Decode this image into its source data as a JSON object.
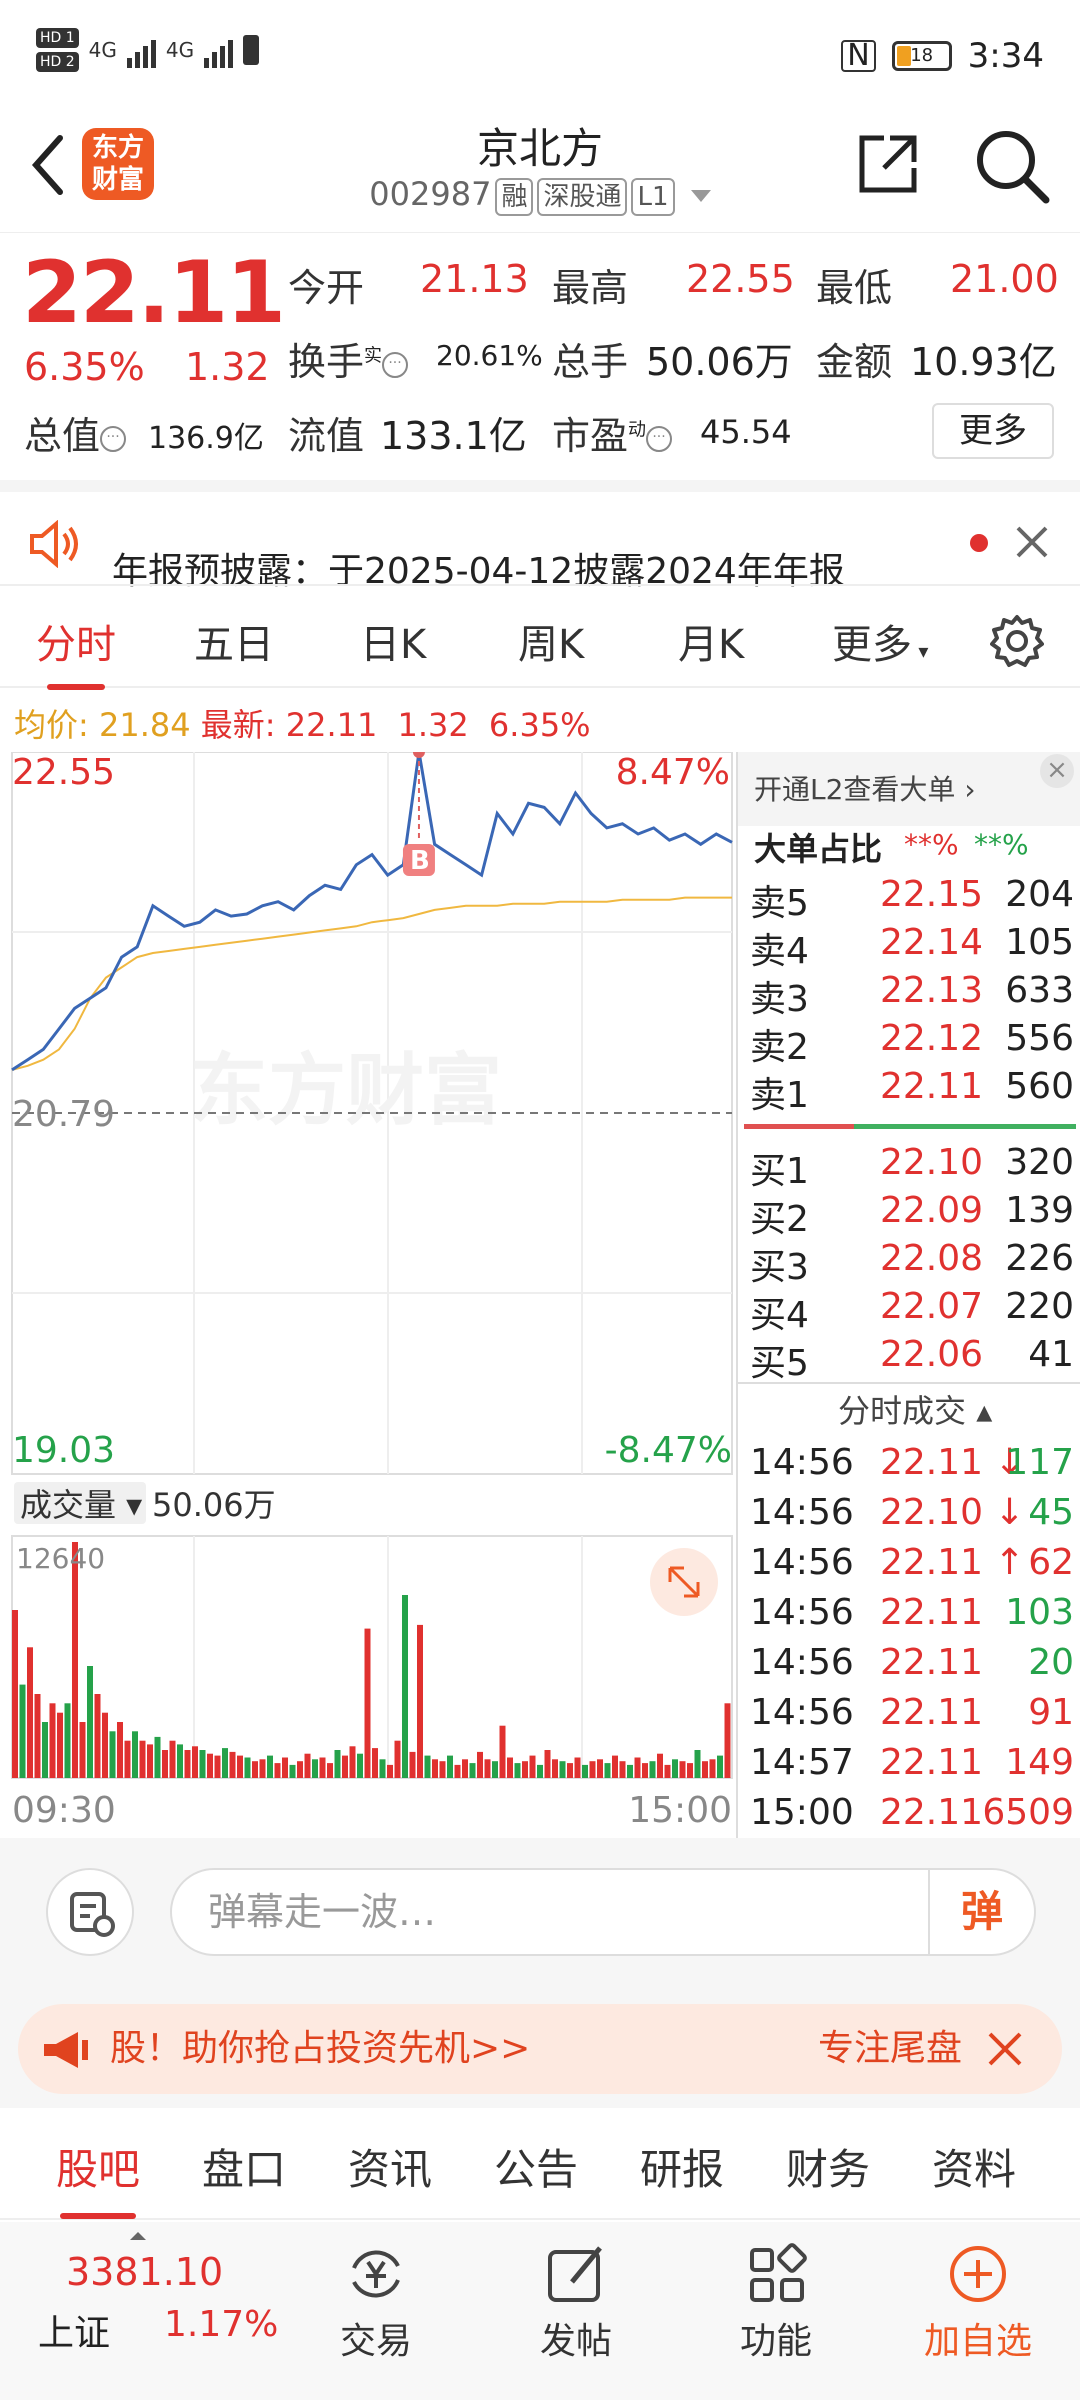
{
  "status_bar": {
    "sim1": "HD 1",
    "sim2": "HD 2",
    "net1": "4G",
    "net2": "4G",
    "battery": "18",
    "time": "3:34"
  },
  "header": {
    "logo": "东方\n财富",
    "title": "京北方",
    "code": "002987",
    "tags": [
      "融",
      "深股通",
      "L1"
    ]
  },
  "quote": {
    "price": "22.11",
    "change_pct": "6.35%",
    "change": "1.32",
    "open_label": "今开",
    "open": "21.13",
    "high_label": "最高",
    "high": "22.55",
    "low_label": "最低",
    "low": "21.00",
    "turnover_label": "换手",
    "turnover_sup": "实",
    "turnover": "20.61%",
    "volume_label": "总手",
    "volume": "50.06万",
    "amount_label": "金额",
    "amount": "10.93亿",
    "mktcap_label": "总值",
    "mktcap": "136.9亿",
    "float_label": "流值",
    "float": "133.1亿",
    "pe_label": "市盈",
    "pe_sup": "动",
    "pe": "45.54",
    "more": "更多"
  },
  "notice": {
    "text": "年报预披露：于2025-04-12披露2024年年报"
  },
  "tabs": [
    "分时",
    "五日",
    "日K",
    "周K",
    "月K",
    "更多"
  ],
  "avg_line": {
    "avg_label": "均价:",
    "avg": "21.84",
    "latest_label": "最新:",
    "latest": "22.11",
    "change": "1.32",
    "pct": "6.35%"
  },
  "chart_data": {
    "type": "line",
    "y_top": "22.55",
    "y_mid": "20.79",
    "y_bottom": "19.03",
    "pct_top": "8.47%",
    "pct_bottom": "-8.47%",
    "watermark": "东方财富",
    "marker": "B",
    "volume_label": "成交量",
    "volume_total": "50.06万",
    "volume_max": "12640",
    "x_start": "09:30",
    "x_end": "15:00",
    "ylim": [
      19.03,
      22.55
    ],
    "price": [
      21.0,
      21.05,
      21.1,
      21.2,
      21.3,
      21.35,
      21.4,
      21.55,
      21.6,
      21.8,
      21.75,
      21.7,
      21.72,
      21.78,
      21.75,
      21.76,
      21.8,
      21.82,
      21.78,
      21.85,
      21.9,
      21.88,
      22.0,
      22.05,
      21.95,
      22.0,
      22.55,
      22.1,
      22.05,
      22.0,
      21.95,
      22.25,
      22.15,
      22.3,
      22.28,
      22.2,
      22.35,
      22.25,
      22.18,
      22.2,
      22.15,
      22.18,
      22.12,
      22.15,
      22.1,
      22.15,
      22.11
    ],
    "avg": [
      21.0,
      21.02,
      21.05,
      21.1,
      21.2,
      21.35,
      21.45,
      21.5,
      21.55,
      21.57,
      21.58,
      21.59,
      21.6,
      21.61,
      21.62,
      21.63,
      21.64,
      21.65,
      21.66,
      21.67,
      21.68,
      21.69,
      21.7,
      21.72,
      21.73,
      21.74,
      21.76,
      21.78,
      21.79,
      21.8,
      21.8,
      21.8,
      21.81,
      21.81,
      21.81,
      21.82,
      21.82,
      21.82,
      21.82,
      21.83,
      21.83,
      21.83,
      21.83,
      21.84,
      21.84,
      21.84,
      21.84
    ],
    "volumes": [
      9000,
      5000,
      7000,
      4500,
      3000,
      4000,
      3500,
      4000,
      12640,
      3000,
      6000,
      4500,
      3500,
      2500,
      3000,
      2000,
      2500,
      2000,
      1800,
      2200,
      1500,
      2000,
      1800,
      1500,
      1700,
      1500,
      1300,
      1200,
      1600,
      1400,
      1200,
      1100,
      900,
      1000,
      1200,
      800,
      1100,
      700,
      900,
      1300,
      1000,
      1100,
      800,
      1500,
      1200,
      1700,
      1300,
      8000,
      1600,
      1000,
      700,
      2000,
      9800,
      1400,
      8200,
      1200,
      1000,
      900,
      1200,
      700,
      1000,
      800,
      1400,
      1000,
      900,
      2800,
      1100,
      800,
      900,
      1200,
      700,
      1500,
      1000,
      900,
      800,
      1100,
      700,
      900,
      1000,
      800,
      1200,
      900,
      700,
      1100,
      800,
      900,
      1300,
      700,
      1000,
      900,
      800,
      1500,
      900,
      1000,
      1200,
      4000
    ]
  },
  "order_book": {
    "l2_link": "开通L2查看大单",
    "big_label": "大单占比",
    "big_a": "**%",
    "big_b": "**%",
    "asks": [
      {
        "label": "卖5",
        "price": "22.15",
        "vol": "204"
      },
      {
        "label": "卖4",
        "price": "22.14",
        "vol": "105"
      },
      {
        "label": "卖3",
        "price": "22.13",
        "vol": "633"
      },
      {
        "label": "卖2",
        "price": "22.12",
        "vol": "556"
      },
      {
        "label": "卖1",
        "price": "22.11",
        "vol": "560"
      }
    ],
    "bids": [
      {
        "label": "买1",
        "price": "22.10",
        "vol": "320"
      },
      {
        "label": "买2",
        "price": "22.09",
        "vol": "139"
      },
      {
        "label": "买3",
        "price": "22.08",
        "vol": "226"
      },
      {
        "label": "买4",
        "price": "22.07",
        "vol": "220"
      },
      {
        "label": "买5",
        "price": "22.06",
        "vol": "41"
      }
    ],
    "trades_label": "分时成交",
    "trades": [
      {
        "t": "14:56",
        "p": "22.11",
        "dir": "↓",
        "v": "117",
        "c": "green"
      },
      {
        "t": "14:56",
        "p": "22.10",
        "dir": "↓",
        "v": "45",
        "c": "green"
      },
      {
        "t": "14:56",
        "p": "22.11",
        "dir": "↑",
        "v": "62",
        "c": "red"
      },
      {
        "t": "14:56",
        "p": "22.11",
        "dir": "",
        "v": "103",
        "c": "green"
      },
      {
        "t": "14:56",
        "p": "22.11",
        "dir": "",
        "v": "20",
        "c": "green"
      },
      {
        "t": "14:56",
        "p": "22.11",
        "dir": "",
        "v": "91",
        "c": "red"
      },
      {
        "t": "14:57",
        "p": "22.11",
        "dir": "",
        "v": "149",
        "c": "red"
      },
      {
        "t": "15:00",
        "p": "22.11",
        "dir": "",
        "v": "6509",
        "c": "red"
      }
    ]
  },
  "danmu": {
    "placeholder": "弹幕走一波…",
    "btn": "弹"
  },
  "ad": {
    "text": "股！助你抢占投资先机>>",
    "right": "专注尾盘"
  },
  "bottom_tabs": [
    "股吧",
    "盘口",
    "资讯",
    "公告",
    "研报",
    "财务",
    "资料"
  ],
  "nav": {
    "index_value": "3381.10",
    "index_name": "上证",
    "index_pct": "1.17%",
    "items": [
      "交易",
      "发帖",
      "功能",
      "加自选"
    ]
  },
  "colors": {
    "up": "#e0312f",
    "down": "#25a24a",
    "line": "#3a67b5",
    "avg": "#f0b840",
    "brand": "#ee5a24"
  }
}
